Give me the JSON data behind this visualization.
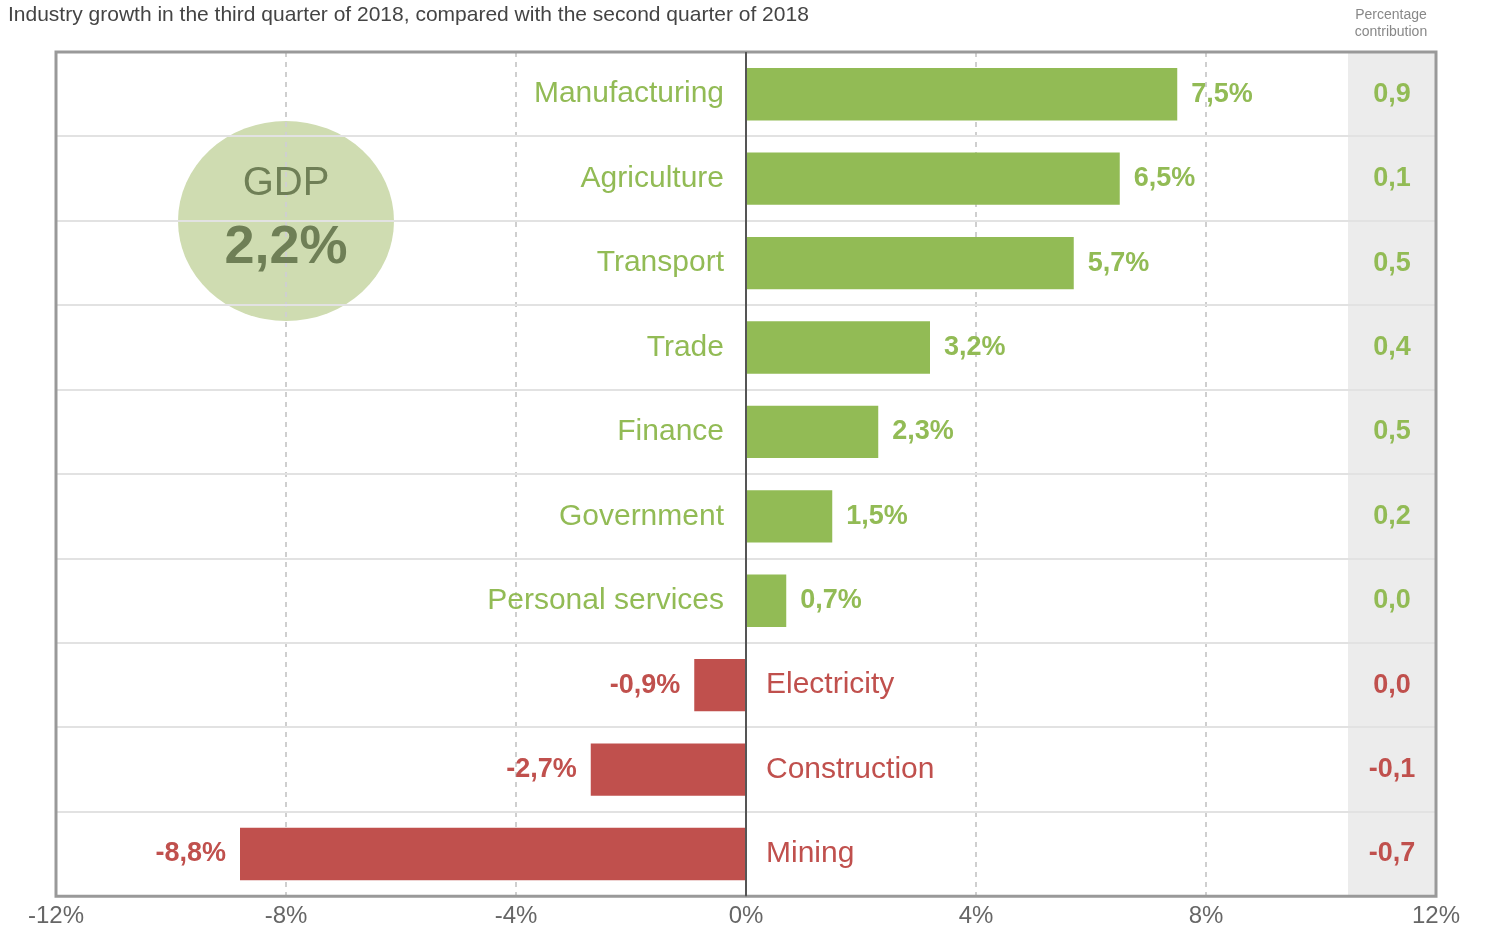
{
  "chart_data": {
    "type": "bar",
    "orientation": "horizontal",
    "title": "Industry growth in the third quarter of 2018, compared with the second quarter of 2018",
    "categories": [
      "Manufacturing",
      "Agriculture",
      "Transport",
      "Trade",
      "Finance",
      "Government",
      "Personal services",
      "Electricity",
      "Construction",
      "Mining"
    ],
    "values": [
      7.5,
      6.5,
      5.7,
      3.2,
      2.3,
      1.5,
      0.7,
      -0.9,
      -2.7,
      -8.8
    ],
    "colors": [
      "#92bb55",
      "#92bb55",
      "#92bb55",
      "#92bb55",
      "#92bb55",
      "#92bb55",
      "#92bb55",
      "#c0504d",
      "#c0504d",
      "#c0504d"
    ],
    "value_labels": [
      "7,5%",
      "6,5%",
      "5,7%",
      "3,2%",
      "2,3%",
      "1,5%",
      "0,7%",
      "-0,9%",
      "-2,7%",
      "-8,8%"
    ],
    "xlim": [
      -12,
      12
    ],
    "xticks": [
      {
        "value": -12,
        "label": "-12%"
      },
      {
        "value": -8,
        "label": "-8%"
      },
      {
        "value": -4,
        "label": "-4%"
      },
      {
        "value": 0,
        "label": "0%"
      },
      {
        "value": 4,
        "label": "4%"
      },
      {
        "value": 8,
        "label": "8%"
      },
      {
        "value": 12,
        "label": "12%"
      }
    ],
    "grid": "x",
    "annotations": [
      "Percentage contribution",
      "GDP",
      "2,2%",
      "0,9",
      "0,1",
      "0,5",
      "0,4",
      "0,5",
      "0,2",
      "0,0",
      "0,0",
      "-0,1",
      "-0,7"
    ]
  }
}
